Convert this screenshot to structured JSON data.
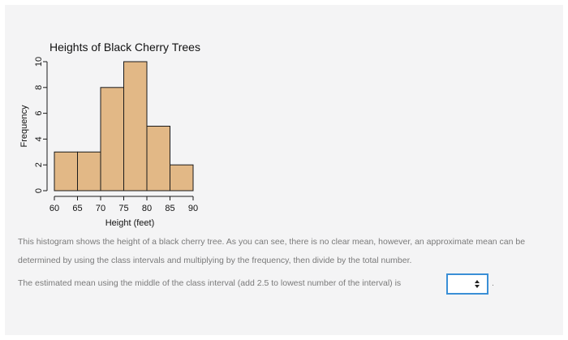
{
  "chart_data": {
    "type": "bar",
    "title": "Heights of Black Cherry Trees",
    "xlabel": "Height (feet)",
    "ylabel": "Frequency",
    "bins": [
      [
        60,
        65
      ],
      [
        65,
        70
      ],
      [
        70,
        75
      ],
      [
        75,
        80
      ],
      [
        80,
        85
      ],
      [
        85,
        90
      ]
    ],
    "values": [
      3,
      3,
      8,
      10,
      5,
      2
    ],
    "xticks": [
      "60",
      "65",
      "70",
      "75",
      "80",
      "85",
      "90"
    ],
    "yticks": [
      "0",
      "2",
      "4",
      "6",
      "8",
      "10"
    ],
    "xlim": [
      60,
      90
    ],
    "ylim": [
      0,
      10
    ],
    "bar_color": "#e2b886",
    "grid": false
  },
  "text": {
    "intro": "This histogram shows the height of a black cherry tree. As you can see, there is no clear mean, however, an approximate mean can be determined by using the class intervals and multiplying by the frequency, then divide by the total number.",
    "question": "The estimated mean using the middle of the class interval (add 2.5 to lowest number of the interval) is",
    "trailing": "."
  },
  "select": {
    "value": "",
    "border_color": "#3a8fd6"
  }
}
